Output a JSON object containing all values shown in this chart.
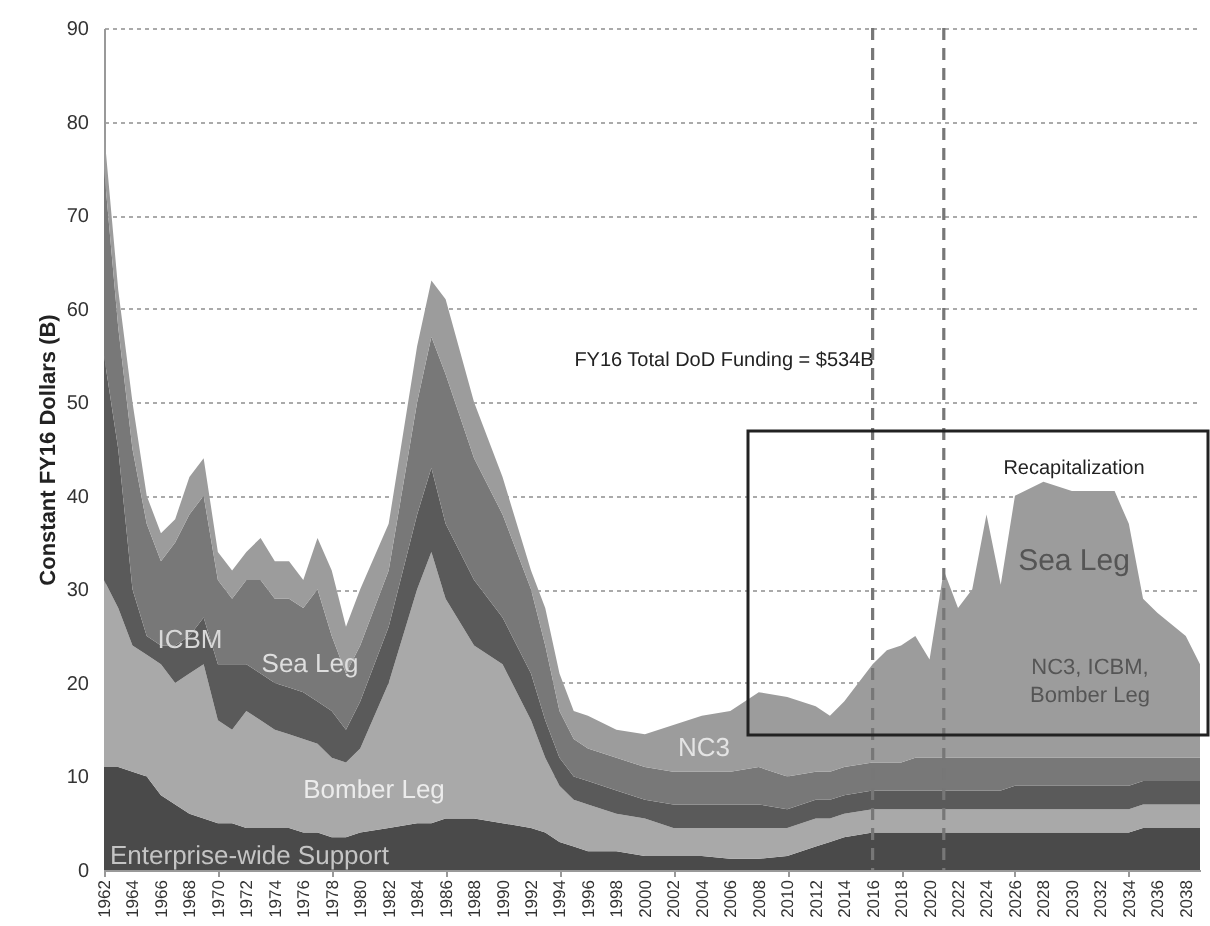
{
  "chart_data": {
    "type": "area",
    "stacked": true,
    "ylabel": "Constant FY16 Dollars (B)",
    "x": [
      1962,
      1963,
      1964,
      1965,
      1966,
      1967,
      1968,
      1969,
      1970,
      1971,
      1972,
      1973,
      1974,
      1975,
      1976,
      1977,
      1978,
      1979,
      1980,
      1982,
      1984,
      1985,
      1986,
      1988,
      1990,
      1992,
      1993,
      1994,
      1995,
      1996,
      1998,
      2000,
      2002,
      2004,
      2006,
      2008,
      2010,
      2012,
      2013,
      2014,
      2016,
      2017,
      2018,
      2019,
      2020,
      2021,
      2022,
      2023,
      2024,
      2025,
      2026,
      2028,
      2030,
      2032,
      2033,
      2034,
      2035,
      2036,
      2038,
      2039
    ],
    "series": [
      {
        "name": "Enterprise-wide Support",
        "color": "#4a4a4a",
        "values": [
          11,
          11,
          10.5,
          10,
          8,
          7,
          6,
          5.5,
          5,
          5,
          4.5,
          4.5,
          4.5,
          4.5,
          4,
          4,
          3.5,
          3.5,
          4,
          4.5,
          5,
          5,
          5.5,
          5.5,
          5,
          4.5,
          4,
          3,
          2.5,
          2,
          2,
          1.5,
          1.5,
          1.5,
          1.2,
          1.2,
          1.5,
          2.5,
          3,
          3.5,
          4,
          4,
          4,
          4,
          4,
          4,
          4,
          4,
          4,
          4,
          4,
          4,
          4,
          4,
          4,
          4,
          4.5,
          4.5,
          4.5,
          4.5
        ]
      },
      {
        "name": "Bomber Leg",
        "color": "#a9a9a9",
        "values": [
          20,
          17,
          13.5,
          13,
          14,
          13,
          15,
          16.5,
          11,
          10,
          12.5,
          11.5,
          10.5,
          10,
          10,
          9.5,
          8.5,
          8,
          9,
          15.5,
          25,
          29,
          23.5,
          18.5,
          17,
          11.5,
          8,
          6,
          5,
          5,
          4,
          4,
          3,
          3,
          3.3,
          3.3,
          3,
          3,
          2.5,
          2.5,
          2.5,
          2.5,
          2.5,
          2.5,
          2.5,
          2.5,
          2.5,
          2.5,
          2.5,
          2.5,
          2.5,
          2.5,
          2.5,
          2.5,
          2.5,
          2.5,
          2.5,
          2.5,
          2.5,
          2.5
        ]
      },
      {
        "name": "ICBM",
        "color": "#5a5a5a",
        "values": [
          24,
          17,
          6,
          2,
          2,
          4,
          4,
          5,
          6,
          7,
          5,
          5,
          5,
          5,
          5,
          4.5,
          5,
          3.5,
          5,
          6,
          8,
          9,
          8,
          7,
          5,
          5,
          4,
          3,
          2.5,
          2.5,
          2.5,
          2,
          2.5,
          2.5,
          2.5,
          2.5,
          2,
          2,
          2,
          2,
          2,
          2,
          2,
          2,
          2,
          2,
          2,
          2,
          2,
          2,
          2.5,
          2.5,
          2.5,
          2.5,
          2.5,
          2.5,
          2.5,
          2.5,
          2.5,
          2.5
        ]
      },
      {
        "name": "Sea Leg",
        "color": "#787878",
        "values": [
          20,
          13,
          15,
          12,
          9,
          11,
          13,
          13,
          9,
          7,
          9,
          10,
          9,
          9.5,
          9,
          12,
          8,
          6,
          6,
          6,
          12,
          14,
          16,
          13,
          11,
          9,
          8,
          5,
          4,
          3.5,
          3.5,
          3.5,
          3.5,
          3.5,
          3.5,
          4,
          3.5,
          3,
          3,
          3,
          3,
          3,
          3,
          3.5,
          3.5,
          3.5,
          3.5,
          3.5,
          3.5,
          3.5,
          3,
          3,
          3,
          3,
          3,
          3,
          2.5,
          2.5,
          2.5,
          2.5
        ]
      },
      {
        "name": "NC3",
        "color": "#9c9c9c",
        "values": [
          4,
          4,
          5,
          3,
          3,
          2.5,
          4,
          4,
          3,
          3,
          3,
          4.5,
          4,
          4,
          3,
          5.5,
          7,
          5,
          6,
          5,
          6,
          6,
          8,
          6,
          4,
          2,
          4,
          4,
          3,
          3.5,
          3,
          3.5,
          5,
          6,
          6.5,
          8,
          8.5,
          7,
          6,
          7,
          10.5,
          12,
          12.5,
          13,
          10.5,
          20,
          16,
          18,
          26,
          18.5,
          28,
          29.5,
          28.5,
          28.5,
          28.5,
          25,
          17,
          15.5,
          13,
          10
        ]
      }
    ],
    "xlim": [
      1962,
      2039
    ],
    "xticks": [
      1962,
      1964,
      1966,
      1968,
      1970,
      1972,
      1974,
      1976,
      1978,
      1980,
      1982,
      1984,
      1986,
      1988,
      1990,
      1992,
      1994,
      1996,
      1998,
      2000,
      2002,
      2004,
      2006,
      2008,
      2010,
      2012,
      2014,
      2016,
      2018,
      2020,
      2022,
      2024,
      2026,
      2028,
      2030,
      2032,
      2034,
      2036,
      2038
    ],
    "ylim": [
      0,
      90
    ],
    "yticks": [
      0,
      10,
      20,
      30,
      40,
      50,
      60,
      70,
      80,
      90
    ],
    "grid": "y",
    "ref_lines": [
      {
        "axis": "x",
        "value": 2016,
        "color": "#777777",
        "line_style": "dashed"
      },
      {
        "axis": "x",
        "value": 2021,
        "color": "#777777",
        "line_style": "dashed"
      }
    ],
    "annotations": [
      "FY16 Total DoD Funding = $534B",
      "Recapitalization",
      "Sea Leg",
      "NC3, ICBM, Bomber Leg"
    ]
  }
}
